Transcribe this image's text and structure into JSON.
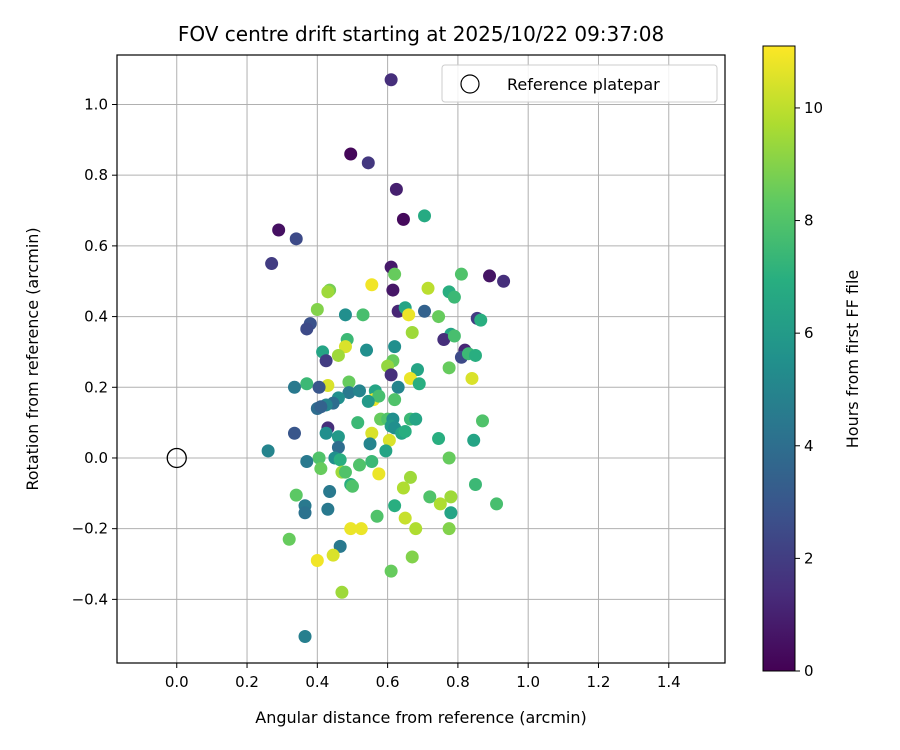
{
  "chart_data": {
    "type": "scatter",
    "title": "FOV centre drift starting at 2025/10/22 09:37:08",
    "xlabel": "Angular distance from reference (arcmin)",
    "ylabel": "Rotation from reference (arcmin)",
    "xlim": [
      -0.17,
      1.56
    ],
    "ylim": [
      -0.58,
      1.14
    ],
    "xticks": [
      "0.0",
      "0.2",
      "0.4",
      "0.6",
      "0.8",
      "1.0",
      "1.2",
      "1.4"
    ],
    "xtick_values": [
      0.0,
      0.2,
      0.4,
      0.6,
      0.8,
      1.0,
      1.2,
      1.4
    ],
    "yticks": [
      "−0.4",
      "−0.2",
      "0.0",
      "0.2",
      "0.4",
      "0.6",
      "0.8",
      "1.0"
    ],
    "ytick_values": [
      -0.4,
      -0.2,
      0.0,
      0.2,
      0.4,
      0.6,
      0.8,
      1.0
    ],
    "grid": true,
    "legend": {
      "position": "top-right",
      "entries": [
        "Reference platepar"
      ]
    },
    "reference_point": {
      "x": 0.0,
      "y": 0.0
    },
    "colorbar": {
      "label": "Hours from first FF file",
      "range": [
        0,
        11.1
      ],
      "ticks": [
        "0",
        "2",
        "4",
        "6",
        "8",
        "10"
      ],
      "tick_values": [
        0,
        2,
        4,
        6,
        8,
        10
      ],
      "colormap": "viridis"
    },
    "points": [
      {
        "x": 0.61,
        "y": 1.07,
        "c": 1.5
      },
      {
        "x": 0.495,
        "y": 0.86,
        "c": 0.2
      },
      {
        "x": 0.545,
        "y": 0.835,
        "c": 1.8
      },
      {
        "x": 0.625,
        "y": 0.76,
        "c": 1.0
      },
      {
        "x": 0.645,
        "y": 0.675,
        "c": 0.3
      },
      {
        "x": 0.705,
        "y": 0.685,
        "c": 6.8
      },
      {
        "x": 0.29,
        "y": 0.645,
        "c": 0.5
      },
      {
        "x": 0.34,
        "y": 0.62,
        "c": 2.5
      },
      {
        "x": 0.27,
        "y": 0.55,
        "c": 2.0
      },
      {
        "x": 0.61,
        "y": 0.54,
        "c": 0.8
      },
      {
        "x": 0.62,
        "y": 0.52,
        "c": 8.5
      },
      {
        "x": 0.81,
        "y": 0.52,
        "c": 8.0
      },
      {
        "x": 0.89,
        "y": 0.515,
        "c": 0.6
      },
      {
        "x": 0.93,
        "y": 0.5,
        "c": 1.5
      },
      {
        "x": 0.555,
        "y": 0.49,
        "c": 10.9
      },
      {
        "x": 0.615,
        "y": 0.475,
        "c": 0.7
      },
      {
        "x": 0.715,
        "y": 0.48,
        "c": 10.0
      },
      {
        "x": 0.775,
        "y": 0.47,
        "c": 7.0
      },
      {
        "x": 0.435,
        "y": 0.475,
        "c": 8.8
      },
      {
        "x": 0.43,
        "y": 0.47,
        "c": 9.5
      },
      {
        "x": 0.79,
        "y": 0.455,
        "c": 7.5
      },
      {
        "x": 0.4,
        "y": 0.42,
        "c": 9.0
      },
      {
        "x": 0.63,
        "y": 0.415,
        "c": 1.2
      },
      {
        "x": 0.65,
        "y": 0.425,
        "c": 6.5
      },
      {
        "x": 0.66,
        "y": 0.405,
        "c": 10.8
      },
      {
        "x": 0.705,
        "y": 0.415,
        "c": 3.5
      },
      {
        "x": 0.745,
        "y": 0.4,
        "c": 8.5
      },
      {
        "x": 0.48,
        "y": 0.405,
        "c": 5.5
      },
      {
        "x": 0.53,
        "y": 0.405,
        "c": 7.8
      },
      {
        "x": 0.855,
        "y": 0.395,
        "c": 2.0
      },
      {
        "x": 0.865,
        "y": 0.39,
        "c": 7.0
      },
      {
        "x": 0.38,
        "y": 0.38,
        "c": 2.8
      },
      {
        "x": 0.37,
        "y": 0.365,
        "c": 2.5
      },
      {
        "x": 0.67,
        "y": 0.355,
        "c": 9.5
      },
      {
        "x": 0.78,
        "y": 0.35,
        "c": 6.5
      },
      {
        "x": 0.76,
        "y": 0.335,
        "c": 1.5
      },
      {
        "x": 0.79,
        "y": 0.345,
        "c": 7.8
      },
      {
        "x": 0.485,
        "y": 0.335,
        "c": 7.5
      },
      {
        "x": 0.48,
        "y": 0.315,
        "c": 10.5
      },
      {
        "x": 0.54,
        "y": 0.305,
        "c": 5.5
      },
      {
        "x": 0.62,
        "y": 0.315,
        "c": 5.5
      },
      {
        "x": 0.82,
        "y": 0.305,
        "c": 1.2
      },
      {
        "x": 0.81,
        "y": 0.285,
        "c": 2.5
      },
      {
        "x": 0.83,
        "y": 0.295,
        "c": 7.5
      },
      {
        "x": 0.85,
        "y": 0.29,
        "c": 7.0
      },
      {
        "x": 0.415,
        "y": 0.3,
        "c": 6.5
      },
      {
        "x": 0.46,
        "y": 0.29,
        "c": 9.5
      },
      {
        "x": 0.425,
        "y": 0.275,
        "c": 2.0
      },
      {
        "x": 0.615,
        "y": 0.275,
        "c": 8.5
      },
      {
        "x": 0.6,
        "y": 0.26,
        "c": 9.3
      },
      {
        "x": 0.775,
        "y": 0.255,
        "c": 8.5
      },
      {
        "x": 0.685,
        "y": 0.25,
        "c": 6.5
      },
      {
        "x": 0.61,
        "y": 0.235,
        "c": 1.5
      },
      {
        "x": 0.665,
        "y": 0.225,
        "c": 10.8
      },
      {
        "x": 0.84,
        "y": 0.225,
        "c": 10.5
      },
      {
        "x": 0.69,
        "y": 0.21,
        "c": 7.0
      },
      {
        "x": 0.49,
        "y": 0.215,
        "c": 8.5
      },
      {
        "x": 0.43,
        "y": 0.205,
        "c": 10.5
      },
      {
        "x": 0.37,
        "y": 0.21,
        "c": 7.5
      },
      {
        "x": 0.335,
        "y": 0.2,
        "c": 4.5
      },
      {
        "x": 0.405,
        "y": 0.2,
        "c": 3.0
      },
      {
        "x": 0.63,
        "y": 0.2,
        "c": 5.0
      },
      {
        "x": 0.565,
        "y": 0.19,
        "c": 6.5
      },
      {
        "x": 0.49,
        "y": 0.185,
        "c": 4.5
      },
      {
        "x": 0.52,
        "y": 0.19,
        "c": 5.0
      },
      {
        "x": 0.56,
        "y": 0.165,
        "c": 10.8
      },
      {
        "x": 0.575,
        "y": 0.175,
        "c": 7.8
      },
      {
        "x": 0.545,
        "y": 0.16,
        "c": 6.0
      },
      {
        "x": 0.62,
        "y": 0.165,
        "c": 8.0
      },
      {
        "x": 0.46,
        "y": 0.17,
        "c": 5.5
      },
      {
        "x": 0.445,
        "y": 0.155,
        "c": 4.0
      },
      {
        "x": 0.425,
        "y": 0.15,
        "c": 5.0
      },
      {
        "x": 0.4,
        "y": 0.14,
        "c": 4.0
      },
      {
        "x": 0.41,
        "y": 0.145,
        "c": 3.5
      },
      {
        "x": 0.58,
        "y": 0.11,
        "c": 8.5
      },
      {
        "x": 0.6,
        "y": 0.11,
        "c": 8.0
      },
      {
        "x": 0.615,
        "y": 0.11,
        "c": 5.5
      },
      {
        "x": 0.665,
        "y": 0.11,
        "c": 7.5
      },
      {
        "x": 0.68,
        "y": 0.11,
        "c": 6.5
      },
      {
        "x": 0.87,
        "y": 0.105,
        "c": 8.0
      },
      {
        "x": 0.515,
        "y": 0.1,
        "c": 7.5
      },
      {
        "x": 0.61,
        "y": 0.09,
        "c": 6.0
      },
      {
        "x": 0.62,
        "y": 0.085,
        "c": 5.5
      },
      {
        "x": 0.64,
        "y": 0.07,
        "c": 6.5
      },
      {
        "x": 0.65,
        "y": 0.075,
        "c": 7.0
      },
      {
        "x": 0.555,
        "y": 0.07,
        "c": 10.5
      },
      {
        "x": 0.43,
        "y": 0.085,
        "c": 1.5
      },
      {
        "x": 0.425,
        "y": 0.07,
        "c": 5.5
      },
      {
        "x": 0.335,
        "y": 0.07,
        "c": 3.0
      },
      {
        "x": 0.46,
        "y": 0.06,
        "c": 6.0
      },
      {
        "x": 0.605,
        "y": 0.05,
        "c": 10.5
      },
      {
        "x": 0.55,
        "y": 0.04,
        "c": 5.0
      },
      {
        "x": 0.745,
        "y": 0.055,
        "c": 7.0
      },
      {
        "x": 0.845,
        "y": 0.05,
        "c": 6.5
      },
      {
        "x": 0.46,
        "y": 0.03,
        "c": 4.0
      },
      {
        "x": 0.26,
        "y": 0.02,
        "c": 5.0
      },
      {
        "x": 0.595,
        "y": 0.02,
        "c": 6.5
      },
      {
        "x": 0.405,
        "y": 0.0,
        "c": 8.0
      },
      {
        "x": 0.45,
        "y": 0.0,
        "c": 5.5
      },
      {
        "x": 0.465,
        "y": -0.005,
        "c": 7.0
      },
      {
        "x": 0.775,
        "y": 0.0,
        "c": 8.5
      },
      {
        "x": 0.37,
        "y": -0.01,
        "c": 4.5
      },
      {
        "x": 0.41,
        "y": -0.03,
        "c": 8.5
      },
      {
        "x": 0.52,
        "y": -0.02,
        "c": 8.0
      },
      {
        "x": 0.555,
        "y": -0.01,
        "c": 7.5
      },
      {
        "x": 0.47,
        "y": -0.04,
        "c": 9.5
      },
      {
        "x": 0.48,
        "y": -0.04,
        "c": 8.0
      },
      {
        "x": 0.575,
        "y": -0.045,
        "c": 10.8
      },
      {
        "x": 0.665,
        "y": -0.055,
        "c": 9.5
      },
      {
        "x": 0.495,
        "y": -0.075,
        "c": 7.0
      },
      {
        "x": 0.5,
        "y": -0.08,
        "c": 8.0
      },
      {
        "x": 0.645,
        "y": -0.085,
        "c": 9.8
      },
      {
        "x": 0.85,
        "y": -0.075,
        "c": 7.5
      },
      {
        "x": 0.435,
        "y": -0.095,
        "c": 4.5
      },
      {
        "x": 0.34,
        "y": -0.105,
        "c": 8.3
      },
      {
        "x": 0.72,
        "y": -0.11,
        "c": 8.0
      },
      {
        "x": 0.78,
        "y": -0.11,
        "c": 9.5
      },
      {
        "x": 0.365,
        "y": -0.135,
        "c": 4.5
      },
      {
        "x": 0.75,
        "y": -0.13,
        "c": 9.8
      },
      {
        "x": 0.91,
        "y": -0.13,
        "c": 7.8
      },
      {
        "x": 0.62,
        "y": -0.135,
        "c": 7.0
      },
      {
        "x": 0.43,
        "y": -0.145,
        "c": 4.5
      },
      {
        "x": 0.365,
        "y": -0.155,
        "c": 4.2
      },
      {
        "x": 0.78,
        "y": -0.155,
        "c": 6.5
      },
      {
        "x": 0.57,
        "y": -0.165,
        "c": 8.0
      },
      {
        "x": 0.65,
        "y": -0.17,
        "c": 10.2
      },
      {
        "x": 0.495,
        "y": -0.2,
        "c": 10.8
      },
      {
        "x": 0.525,
        "y": -0.2,
        "c": 10.8
      },
      {
        "x": 0.68,
        "y": -0.2,
        "c": 9.8
      },
      {
        "x": 0.775,
        "y": -0.2,
        "c": 9.0
      },
      {
        "x": 0.32,
        "y": -0.23,
        "c": 8.5
      },
      {
        "x": 0.465,
        "y": -0.25,
        "c": 4.5
      },
      {
        "x": 0.445,
        "y": -0.275,
        "c": 10.5
      },
      {
        "x": 0.4,
        "y": -0.29,
        "c": 10.9
      },
      {
        "x": 0.67,
        "y": -0.28,
        "c": 9.0
      },
      {
        "x": 0.61,
        "y": -0.32,
        "c": 8.5
      },
      {
        "x": 0.47,
        "y": -0.38,
        "c": 9.5
      },
      {
        "x": 0.365,
        "y": -0.505,
        "c": 4.8
      }
    ]
  }
}
